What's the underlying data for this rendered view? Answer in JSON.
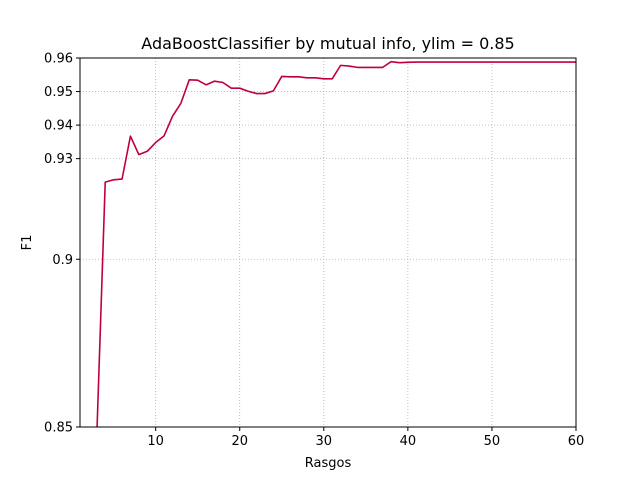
{
  "chart_data": {
    "type": "line",
    "title": "AdaBoostClassifier by mutual info, ylim = 0.85",
    "xlabel": "Rasgos",
    "ylabel": "F1",
    "xlim": [
      1,
      60
    ],
    "ylim": [
      0.85,
      0.96
    ],
    "grid": true,
    "color": "#c0003a",
    "x_ticks": [
      {
        "value": 10,
        "label": "10"
      },
      {
        "value": 20,
        "label": "20"
      },
      {
        "value": 30,
        "label": "30"
      },
      {
        "value": 40,
        "label": "40"
      },
      {
        "value": 50,
        "label": "50"
      },
      {
        "value": 60,
        "label": "60"
      }
    ],
    "y_ticks": [
      {
        "value": 0.85,
        "label": "0.85"
      },
      {
        "value": 0.9,
        "label": "0.9"
      },
      {
        "value": 0.93,
        "label": "0.93"
      },
      {
        "value": 0.94,
        "label": "0.94"
      },
      {
        "value": 0.95,
        "label": "0.95"
      },
      {
        "value": 0.96,
        "label": "0.96"
      }
    ],
    "series": [
      {
        "x": [
          3,
          4,
          5,
          6,
          7,
          8,
          9,
          10,
          11,
          12,
          13,
          14,
          15,
          16,
          17,
          18,
          19,
          20,
          21,
          22,
          23,
          24,
          25,
          26,
          27,
          28,
          29,
          30,
          31,
          32,
          33,
          34,
          35,
          36,
          37,
          38,
          39,
          40,
          41,
          42,
          43,
          44,
          45,
          46,
          47,
          48,
          49,
          50,
          51,
          52,
          53,
          54,
          55,
          56,
          57,
          58,
          59,
          60
        ],
        "values": [
          0.8475,
          0.923,
          0.9237,
          0.9239,
          0.9367,
          0.9312,
          0.9322,
          0.9348,
          0.9368,
          0.9426,
          0.9465,
          0.9535,
          0.9534,
          0.952,
          0.9531,
          0.9527,
          0.951,
          0.951,
          0.9501,
          0.9494,
          0.9494,
          0.9502,
          0.9545,
          0.9544,
          0.9544,
          0.9541,
          0.9541,
          0.9538,
          0.9538,
          0.9578,
          0.9576,
          0.9572,
          0.9572,
          0.9572,
          0.9572,
          0.9589,
          0.9586,
          0.9587,
          0.9588,
          0.9588,
          0.9588,
          0.9588,
          0.9588,
          0.9588,
          0.9588,
          0.9588,
          0.9588,
          0.9588,
          0.9588,
          0.9588,
          0.9588,
          0.9588,
          0.9588,
          0.9588,
          0.9588,
          0.9588,
          0.9588,
          0.9588
        ]
      }
    ]
  }
}
